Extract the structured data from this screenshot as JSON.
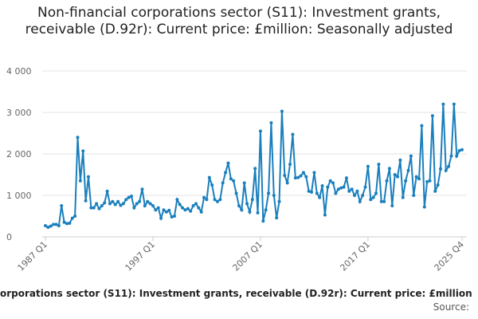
{
  "chart_data": {
    "type": "line",
    "title": "Non-financial corporations sector (S11): Investment grants, receivable (D.92r): Current price: £million: Seasonally adjusted",
    "caption": "orporations sector (S11): Investment grants, receivable (D.92r): Current price: £million:",
    "source": "Source:",
    "categories": [
      "1987 Q1",
      null,
      null,
      null,
      null,
      null,
      null,
      null,
      null,
      null,
      null,
      null,
      null,
      null,
      null,
      null,
      null,
      null,
      null,
      null,
      null,
      null,
      null,
      null,
      null,
      null,
      null,
      null,
      null,
      null,
      null,
      null,
      null,
      null,
      null,
      null,
      null,
      null,
      null,
      null,
      "1997 Q1",
      null,
      null,
      null,
      null,
      null,
      null,
      null,
      null,
      null,
      null,
      null,
      null,
      null,
      null,
      null,
      null,
      null,
      null,
      null,
      null,
      null,
      null,
      null,
      null,
      null,
      null,
      null,
      null,
      null,
      null,
      null,
      null,
      null,
      null,
      null,
      null,
      null,
      null,
      null,
      "2007 Q1",
      null,
      null,
      null,
      null,
      null,
      null,
      null,
      null,
      null,
      null,
      null,
      null,
      null,
      null,
      null,
      null,
      null,
      null,
      null,
      null,
      null,
      null,
      null,
      null,
      null,
      null,
      null,
      null,
      null,
      null,
      null,
      null,
      null,
      null,
      null,
      null,
      null,
      null,
      null,
      "2017 Q1",
      null,
      null,
      null,
      null,
      null,
      null,
      null,
      null,
      null,
      null,
      null,
      null,
      null,
      null,
      null,
      null,
      null,
      null,
      null,
      null,
      null,
      null,
      null,
      null,
      null,
      null,
      null,
      null,
      null,
      null,
      null,
      null,
      null,
      null,
      "2025 Q4"
    ],
    "values": [
      270,
      230,
      260,
      300,
      300,
      270,
      750,
      350,
      320,
      330,
      450,
      500,
      2400,
      1350,
      2070,
      870,
      1450,
      700,
      700,
      800,
      680,
      750,
      820,
      1100,
      800,
      850,
      780,
      850,
      760,
      800,
      900,
      950,
      980,
      700,
      800,
      850,
      1150,
      750,
      850,
      800,
      750,
      650,
      700,
      450,
      650,
      600,
      640,
      480,
      500,
      900,
      780,
      700,
      650,
      680,
      620,
      750,
      800,
      700,
      600,
      950,
      900,
      1430,
      1250,
      900,
      850,
      900,
      1300,
      1550,
      1780,
      1400,
      1350,
      1050,
      750,
      650,
      1300,
      800,
      600,
      900,
      1650,
      580,
      2550,
      380,
      650,
      1050,
      2750,
      1000,
      460,
      850,
      3030,
      1480,
      1300,
      1750,
      2470,
      1420,
      1430,
      1470,
      1550,
      1450,
      1100,
      1080,
      1550,
      1050,
      950,
      1230,
      530,
      1200,
      1350,
      1300,
      1050,
      1150,
      1180,
      1200,
      1420,
      1100,
      1150,
      1000,
      1100,
      850,
      1000,
      1200,
      1700,
      900,
      950,
      1050,
      1750,
      850,
      850,
      1350,
      1650,
      750,
      1500,
      1450,
      1850,
      950,
      1350,
      1600,
      1950,
      1000,
      1450,
      1400,
      2680,
      720,
      1330,
      1350,
      2920,
      1100,
      1250,
      1640,
      3200,
      1600,
      1700,
      1950,
      3200,
      1950,
      2080,
      2100
    ],
    "color": "#1a7fbd",
    "ylim": [
      0,
      4000
    ],
    "yticks": [
      0,
      {
        "value": 1000,
        "label": "1 000"
      },
      {
        "value": 2000,
        "label": "2 000"
      },
      {
        "value": 3000,
        "label": "3 000"
      },
      {
        "value": 4000,
        "label": "4 000"
      }
    ],
    "grid": true
  }
}
